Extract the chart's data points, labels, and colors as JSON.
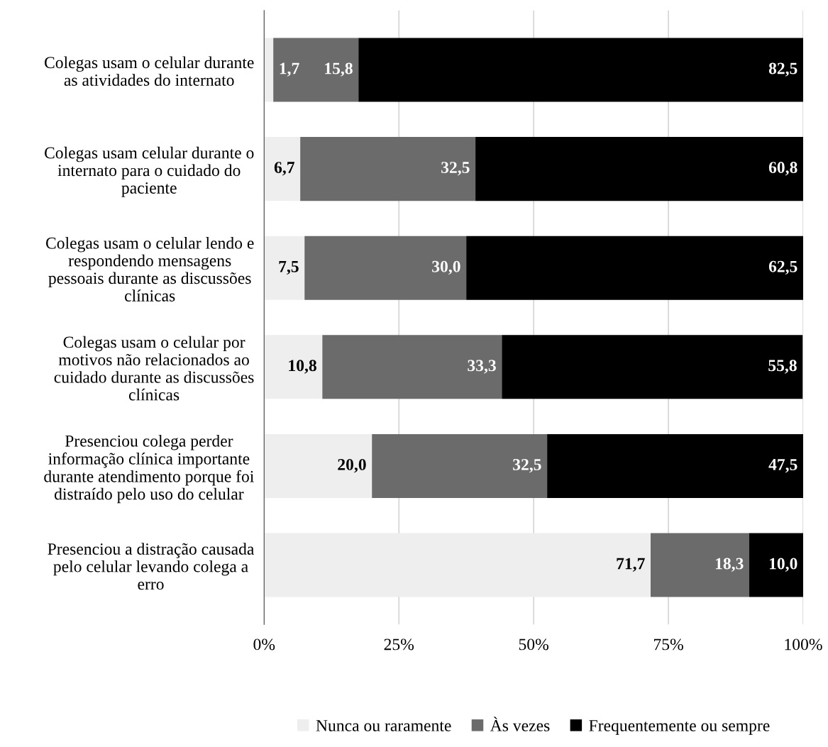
{
  "chart_data": {
    "type": "bar",
    "orientation": "horizontal",
    "stacked": true,
    "categories": [
      "Colegas usam o celular durante\nas atividades do internato",
      "Colegas usam celular durante o\ninternato para o cuidado do\npaciente",
      "Colegas usam o celular lendo e\nrespondendo mensagens\npessoais durante as discussões\nclínicas",
      "Colegas usam o celular por\nmotivos não relacionados ao\ncuidado durante as discussões\nclínicas",
      "Presenciou colega perder\ninformação clínica importante\ndurante atendimento porque foi\ndistraído pelo uso do celular",
      "Presenciou a distração causada\npelo celular levando colega a\nerro"
    ],
    "series": [
      {
        "name": "Nunca ou raramente",
        "color": "#eeeeee",
        "values": [
          1.7,
          6.7,
          7.5,
          10.8,
          20.0,
          71.7
        ],
        "value_labels": [
          "1,7",
          "6,7",
          "7,5",
          "10,8",
          "20,0",
          "71,7"
        ]
      },
      {
        "name": "Às vezes",
        "color": "#6b6b6b",
        "values": [
          15.8,
          32.5,
          30.0,
          33.3,
          32.5,
          18.3
        ],
        "value_labels": [
          "15,8",
          "32,5",
          "30,0",
          "33,3",
          "32,5",
          "18,3"
        ]
      },
      {
        "name": "Frequentemente ou sempre",
        "color": "#000000",
        "values": [
          82.5,
          60.8,
          62.5,
          55.8,
          47.5,
          10.0
        ],
        "value_labels": [
          "82,5",
          "60,8",
          "62,5",
          "55,8",
          "47,5",
          "10,0"
        ]
      }
    ],
    "xlim": [
      0,
      100
    ],
    "xticks": [
      {
        "value": 0,
        "label": "0%"
      },
      {
        "value": 25,
        "label": "25%"
      },
      {
        "value": 50,
        "label": "50%"
      },
      {
        "value": 75,
        "label": "75%"
      },
      {
        "value": 100,
        "label": "100%"
      }
    ],
    "grid": "x",
    "legend": "bottom"
  }
}
